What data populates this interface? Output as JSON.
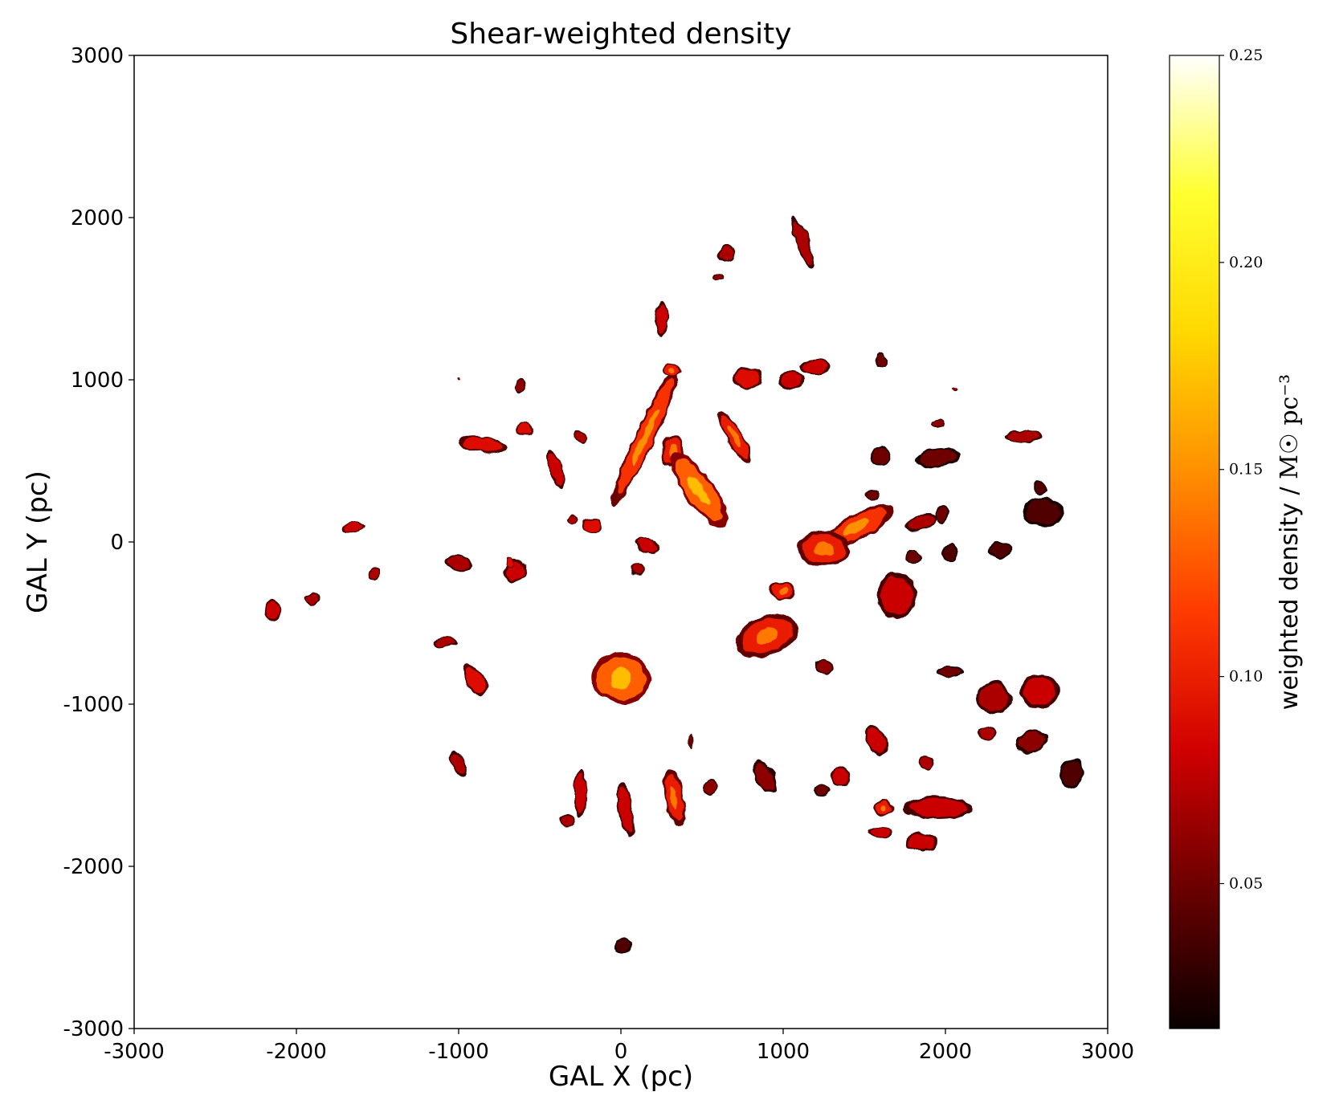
{
  "chart_data": {
    "type": "heatmap",
    "title": "Shear-weighted density",
    "xlabel": "GAL X (pc)",
    "ylabel": "GAL Y (pc)",
    "xlim": [
      -3000,
      3000
    ],
    "ylim": [
      -3000,
      3000
    ],
    "xticks": [
      -3000,
      -2000,
      -1000,
      0,
      1000,
      2000,
      3000
    ],
    "yticks": [
      -3000,
      -2000,
      -1000,
      0,
      1000,
      2000,
      3000
    ],
    "xtick_labels": [
      "-3000",
      "-2000",
      "-1000",
      "0",
      "1000",
      "2000",
      "3000"
    ],
    "ytick_labels": [
      "-3000",
      "-2000",
      "-1000",
      "0",
      "1000",
      "2000",
      "3000"
    ],
    "colorbar": {
      "label": "weighted density / ",
      "unit": "M☉ pc⁻³",
      "range": [
        0.015,
        0.25
      ],
      "ticks": [
        0.05,
        0.1,
        0.15,
        0.2,
        0.25
      ],
      "tick_labels": [
        "0.05",
        "0.10",
        "0.15",
        "0.20",
        "0.25"
      ],
      "colormap": "hot",
      "colors": [
        "#0a0000",
        "#6a0000",
        "#d10000",
        "#ff3b00",
        "#ff8f00",
        "#ffd800",
        "#ffff30",
        "#ffffff"
      ]
    },
    "clouds": [
      {
        "x": -2150,
        "y": -420,
        "rx": 55,
        "ry": 60,
        "rot": 0,
        "value": 0.08
      },
      {
        "x": -1900,
        "y": -350,
        "rx": 50,
        "ry": 35,
        "rot": 0,
        "value": 0.07
      },
      {
        "x": -1650,
        "y": 90,
        "rx": 70,
        "ry": 30,
        "rot": 10,
        "value": 0.08
      },
      {
        "x": -1520,
        "y": -200,
        "rx": 45,
        "ry": 35,
        "rot": 30,
        "value": 0.07
      },
      {
        "x": -1000,
        "y": -130,
        "rx": 90,
        "ry": 45,
        "rot": -10,
        "value": 0.07
      },
      {
        "x": -1080,
        "y": -620,
        "rx": 70,
        "ry": 30,
        "rot": 0,
        "value": 0.07
      },
      {
        "x": -900,
        "y": -850,
        "rx": 60,
        "ry": 110,
        "rot": 30,
        "value": 0.09
      },
      {
        "x": -1000,
        "y": -1370,
        "rx": 40,
        "ry": 90,
        "rot": 20,
        "value": 0.07
      },
      {
        "x": -850,
        "y": 600,
        "rx": 140,
        "ry": 50,
        "rot": -10,
        "value": 0.09
      },
      {
        "x": -600,
        "y": 700,
        "rx": 60,
        "ry": 40,
        "rot": 0,
        "value": 0.09
      },
      {
        "x": -400,
        "y": 450,
        "rx": 40,
        "ry": 130,
        "rot": 20,
        "value": 0.08
      },
      {
        "x": -650,
        "y": -180,
        "rx": 70,
        "ry": 70,
        "rot": 0,
        "value": 0.08
      },
      {
        "x": -620,
        "y": 960,
        "rx": 25,
        "ry": 40,
        "rot": 0,
        "value": 0.06
      },
      {
        "x": -300,
        "y": 140,
        "rx": 40,
        "ry": 30,
        "rot": 0,
        "value": 0.07
      },
      {
        "x": -250,
        "y": 650,
        "rx": 30,
        "ry": 50,
        "rot": 30,
        "value": 0.07
      },
      {
        "x": 150,
        "y": 650,
        "rx": 60,
        "ry": 480,
        "rot": -25,
        "value": 0.11
      },
      {
        "x": 250,
        "y": 1380,
        "rx": 40,
        "ry": 110,
        "rot": 0,
        "value": 0.08
      },
      {
        "x": 320,
        "y": 1060,
        "rx": 60,
        "ry": 40,
        "rot": 0,
        "value": 0.1
      },
      {
        "x": -180,
        "y": 100,
        "rx": 60,
        "ry": 40,
        "rot": 0,
        "value": 0.09
      },
      {
        "x": 0,
        "y": -840,
        "rx": 180,
        "ry": 160,
        "rot": -10,
        "value": 0.13
      },
      {
        "x": 320,
        "y": 560,
        "rx": 70,
        "ry": 100,
        "rot": 0,
        "value": 0.1
      },
      {
        "x": 480,
        "y": 320,
        "rx": 90,
        "ry": 280,
        "rot": 35,
        "value": 0.13
      },
      {
        "x": 700,
        "y": 650,
        "rx": 50,
        "ry": 180,
        "rot": 30,
        "value": 0.1
      },
      {
        "x": 160,
        "y": -20,
        "rx": 80,
        "ry": 40,
        "rot": -20,
        "value": 0.08
      },
      {
        "x": 100,
        "y": -170,
        "rx": 50,
        "ry": 40,
        "rot": 0,
        "value": 0.07
      },
      {
        "x": 650,
        "y": 1780,
        "rx": 50,
        "ry": 60,
        "rot": 0,
        "value": 0.07
      },
      {
        "x": 600,
        "y": 1640,
        "rx": 35,
        "ry": 25,
        "rot": 0,
        "value": 0.06
      },
      {
        "x": 1120,
        "y": 1850,
        "rx": 40,
        "ry": 170,
        "rot": 20,
        "value": 0.07
      },
      {
        "x": 780,
        "y": 1010,
        "rx": 90,
        "ry": 70,
        "rot": 0,
        "value": 0.09
      },
      {
        "x": 1050,
        "y": 1000,
        "rx": 80,
        "ry": 60,
        "rot": 0,
        "value": 0.08
      },
      {
        "x": 1200,
        "y": 1080,
        "rx": 90,
        "ry": 50,
        "rot": 0,
        "value": 0.08
      },
      {
        "x": 1600,
        "y": 1120,
        "rx": 40,
        "ry": 40,
        "rot": 0,
        "value": 0.05
      },
      {
        "x": 1450,
        "y": 90,
        "rx": 260,
        "ry": 80,
        "rot": 30,
        "value": 0.11
      },
      {
        "x": 1250,
        "y": -40,
        "rx": 160,
        "ry": 110,
        "rot": 0,
        "value": 0.1
      },
      {
        "x": 1600,
        "y": 530,
        "rx": 60,
        "ry": 60,
        "rot": 0,
        "value": 0.05
      },
      {
        "x": 1550,
        "y": 290,
        "rx": 40,
        "ry": 30,
        "rot": 0,
        "value": 0.05
      },
      {
        "x": 1700,
        "y": -330,
        "rx": 120,
        "ry": 140,
        "rot": 0,
        "value": 0.08
      },
      {
        "x": 1000,
        "y": -300,
        "rx": 80,
        "ry": 60,
        "rot": 0,
        "value": 0.1
      },
      {
        "x": 900,
        "y": -580,
        "rx": 200,
        "ry": 120,
        "rot": 20,
        "value": 0.1
      },
      {
        "x": 1250,
        "y": -770,
        "rx": 60,
        "ry": 40,
        "rot": -20,
        "value": 0.06
      },
      {
        "x": 1950,
        "y": 520,
        "rx": 140,
        "ry": 60,
        "rot": 10,
        "value": 0.05
      },
      {
        "x": 1850,
        "y": 120,
        "rx": 100,
        "ry": 50,
        "rot": 20,
        "value": 0.07
      },
      {
        "x": 1980,
        "y": 170,
        "rx": 45,
        "ry": 50,
        "rot": 0,
        "value": 0.05
      },
      {
        "x": 1800,
        "y": -90,
        "rx": 50,
        "ry": 45,
        "rot": 0,
        "value": 0.05
      },
      {
        "x": 2030,
        "y": -70,
        "rx": 55,
        "ry": 55,
        "rot": 0,
        "value": 0.04
      },
      {
        "x": 2340,
        "y": -50,
        "rx": 75,
        "ry": 55,
        "rot": 0,
        "value": 0.04
      },
      {
        "x": 2600,
        "y": 180,
        "rx": 130,
        "ry": 90,
        "rot": 0,
        "value": 0.04
      },
      {
        "x": 2580,
        "y": 330,
        "rx": 40,
        "ry": 40,
        "rot": 0,
        "value": 0.04
      },
      {
        "x": 2480,
        "y": 650,
        "rx": 110,
        "ry": 40,
        "rot": 0,
        "value": 0.07
      },
      {
        "x": 1950,
        "y": 730,
        "rx": 40,
        "ry": 25,
        "rot": 0,
        "value": 0.06
      },
      {
        "x": 2030,
        "y": -800,
        "rx": 80,
        "ry": 35,
        "rot": 0,
        "value": 0.05
      },
      {
        "x": 2300,
        "y": -960,
        "rx": 110,
        "ry": 100,
        "rot": 0,
        "value": 0.07
      },
      {
        "x": 2580,
        "y": -920,
        "rx": 120,
        "ry": 110,
        "rot": 0,
        "value": 0.08
      },
      {
        "x": 2530,
        "y": -1230,
        "rx": 100,
        "ry": 70,
        "rot": 20,
        "value": 0.06
      },
      {
        "x": 2780,
        "y": -1430,
        "rx": 70,
        "ry": 90,
        "rot": 0,
        "value": 0.04
      },
      {
        "x": 2260,
        "y": -1180,
        "rx": 60,
        "ry": 50,
        "rot": 0,
        "value": 0.07
      },
      {
        "x": 1570,
        "y": -1220,
        "rx": 60,
        "ry": 100,
        "rot": 30,
        "value": 0.08
      },
      {
        "x": 1350,
        "y": -1450,
        "rx": 60,
        "ry": 60,
        "rot": 0,
        "value": 0.08
      },
      {
        "x": 1240,
        "y": -1530,
        "rx": 50,
        "ry": 45,
        "rot": 0,
        "value": 0.05
      },
      {
        "x": 1950,
        "y": -1640,
        "rx": 220,
        "ry": 70,
        "rot": 0,
        "value": 0.08
      },
      {
        "x": 1620,
        "y": -1640,
        "rx": 60,
        "ry": 50,
        "rot": 0,
        "value": 0.1
      },
      {
        "x": 1600,
        "y": -1790,
        "rx": 80,
        "ry": 35,
        "rot": 0,
        "value": 0.08
      },
      {
        "x": 1850,
        "y": -1850,
        "rx": 100,
        "ry": 60,
        "rot": 0,
        "value": 0.08
      },
      {
        "x": 1880,
        "y": -1360,
        "rx": 50,
        "ry": 40,
        "rot": 0,
        "value": 0.07
      },
      {
        "x": 890,
        "y": -1450,
        "rx": 60,
        "ry": 110,
        "rot": 30,
        "value": 0.06
      },
      {
        "x": 330,
        "y": -1580,
        "rx": 60,
        "ry": 180,
        "rot": 10,
        "value": 0.1
      },
      {
        "x": 30,
        "y": -1650,
        "rx": 45,
        "ry": 170,
        "rot": 10,
        "value": 0.08
      },
      {
        "x": -250,
        "y": -1550,
        "rx": 40,
        "ry": 150,
        "rot": 0,
        "value": 0.08
      },
      {
        "x": -330,
        "y": -1720,
        "rx": 50,
        "ry": 40,
        "rot": 0,
        "value": 0.07
      },
      {
        "x": 550,
        "y": -1510,
        "rx": 40,
        "ry": 50,
        "rot": 0,
        "value": 0.06
      },
      {
        "x": 430,
        "y": -1230,
        "rx": 15,
        "ry": 45,
        "rot": 0,
        "value": 0.05
      },
      {
        "x": 10,
        "y": -2490,
        "rx": 55,
        "ry": 45,
        "rot": 0,
        "value": 0.04
      },
      {
        "x": -1000,
        "y": 1000,
        "rx": 10,
        "ry": 10,
        "rot": 0,
        "value": 0.06
      },
      {
        "x": -680,
        "y": -130,
        "rx": 25,
        "ry": 30,
        "rot": 0,
        "value": 0.09
      },
      {
        "x": 2060,
        "y": 950,
        "rx": 15,
        "ry": 10,
        "rot": 0,
        "value": 0.06
      }
    ]
  }
}
